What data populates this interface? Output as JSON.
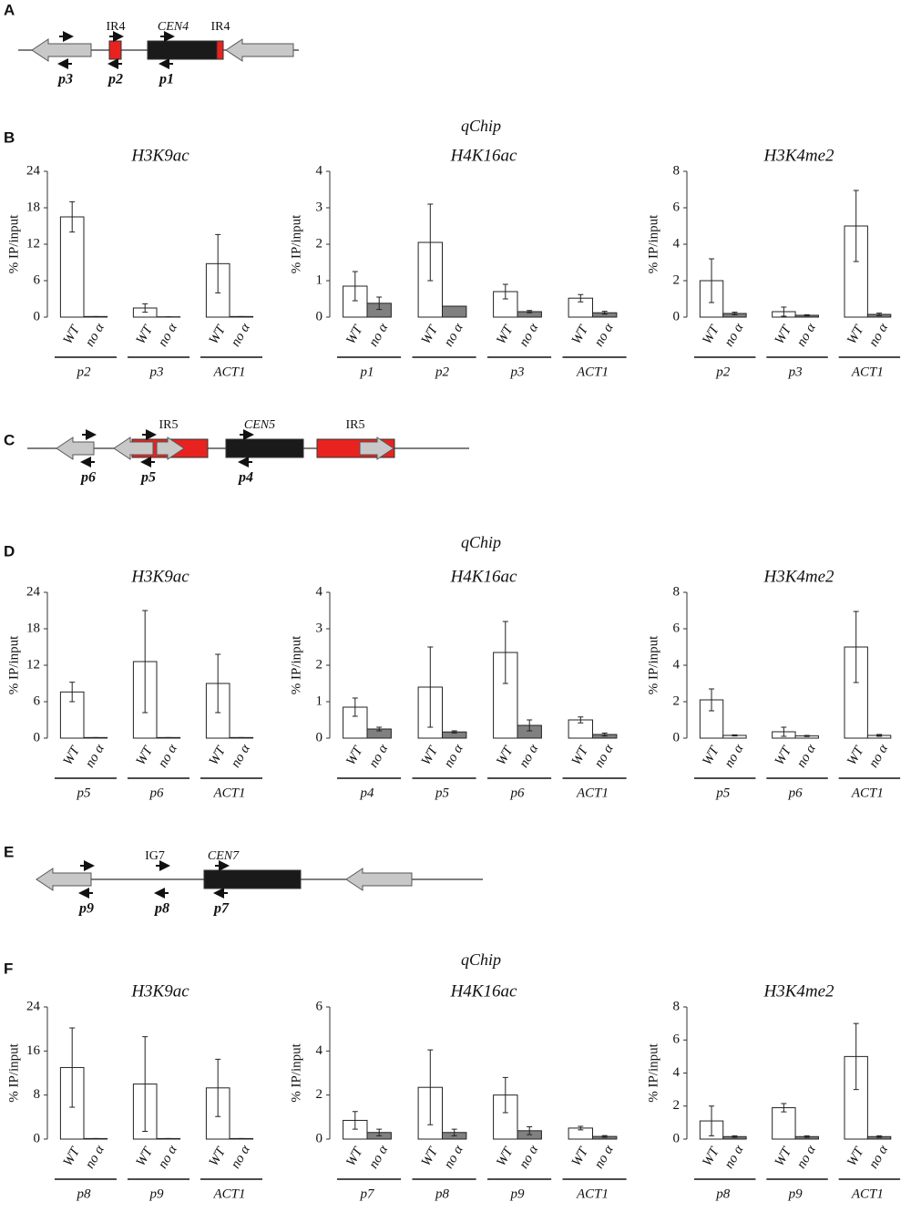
{
  "panel_labels": [
    "A",
    "B",
    "C",
    "D",
    "E",
    "F"
  ],
  "section_titles": [
    "qChip",
    "qChip",
    "qChip"
  ],
  "diagrams": [
    {
      "regions": [
        "IR4",
        "CEN4",
        "IR4"
      ],
      "primers": [
        "p3",
        "p2",
        "p1"
      ]
    },
    {
      "regions": [
        "IR5",
        "CEN5",
        "IR5"
      ],
      "primers": [
        "p6",
        "p5",
        "p4"
      ]
    },
    {
      "regions": [
        "IG7",
        "CEN7"
      ],
      "primers": [
        "p9",
        "p8",
        "p7"
      ]
    }
  ],
  "chart_data": [
    {
      "type": "bar",
      "title": "H3K9ac",
      "y_label": "% IP/input",
      "categories": [
        "p2",
        "p3",
        "ACT1"
      ],
      "ylim": [
        0,
        24
      ],
      "yticks": [
        0,
        6,
        12,
        18,
        24
      ],
      "series": [
        {
          "name": "WT",
          "color": "#ffffff",
          "values": [
            16.5,
            1.5,
            8.8
          ],
          "errors": [
            2.5,
            0.7,
            4.8
          ]
        },
        {
          "name": "no α",
          "color": "#ffffff",
          "values": [
            0.1,
            0.05,
            0.1
          ],
          "errors": [
            0,
            0,
            0
          ]
        }
      ]
    },
    {
      "type": "bar",
      "title": "H4K16ac",
      "y_label": "% IP/input",
      "categories": [
        "p1",
        "p2",
        "p3",
        "ACT1"
      ],
      "ylim": [
        0,
        4
      ],
      "yticks": [
        0,
        1,
        2,
        3,
        4
      ],
      "series": [
        {
          "name": "WT",
          "color": "#ffffff",
          "values": [
            0.85,
            2.05,
            0.7,
            0.52
          ],
          "errors": [
            0.4,
            1.05,
            0.2,
            0.1
          ]
        },
        {
          "name": "no α",
          "color": "#808080",
          "values": [
            0.38,
            0.3,
            0.15,
            0.12
          ],
          "errors": [
            0.17,
            0,
            0.03,
            0.04
          ]
        }
      ]
    },
    {
      "type": "bar",
      "title": "H3K4me2",
      "y_label": "% IP/input",
      "categories": [
        "p2",
        "p3",
        "ACT1"
      ],
      "ylim": [
        0,
        8
      ],
      "yticks": [
        0,
        2,
        4,
        6,
        8
      ],
      "series": [
        {
          "name": "WT",
          "color": "#ffffff",
          "values": [
            2.0,
            0.3,
            5.0
          ],
          "errors": [
            1.2,
            0.25,
            1.95
          ]
        },
        {
          "name": "no α",
          "color": "#808080",
          "values": [
            0.2,
            0.1,
            0.15
          ],
          "errors": [
            0.07,
            0.03,
            0.07
          ]
        }
      ]
    },
    {
      "type": "bar",
      "title": "H3K9ac",
      "y_label": "% IP/input",
      "categories": [
        "p5",
        "p6",
        "ACT1"
      ],
      "ylim": [
        0,
        24
      ],
      "yticks": [
        0,
        6,
        12,
        18,
        24
      ],
      "series": [
        {
          "name": "WT",
          "color": "#ffffff",
          "values": [
            7.6,
            12.6,
            9.0
          ],
          "errors": [
            1.6,
            8.4,
            4.8
          ]
        },
        {
          "name": "no α",
          "color": "#ffffff",
          "values": [
            0.1,
            0.1,
            0.1
          ],
          "errors": [
            0,
            0,
            0
          ]
        }
      ]
    },
    {
      "type": "bar",
      "title": "H4K16ac",
      "y_label": "% IP/input",
      "categories": [
        "p4",
        "p5",
        "p6",
        "ACT1"
      ],
      "ylim": [
        0,
        4
      ],
      "yticks": [
        0,
        1,
        2,
        3,
        4
      ],
      "series": [
        {
          "name": "WT",
          "color": "#ffffff",
          "values": [
            0.85,
            1.4,
            2.35,
            0.5
          ],
          "errors": [
            0.25,
            1.1,
            0.85,
            0.08
          ]
        },
        {
          "name": "no α",
          "color": "#808080",
          "values": [
            0.25,
            0.17,
            0.35,
            0.1
          ],
          "errors": [
            0.05,
            0.03,
            0.15,
            0.04
          ]
        }
      ]
    },
    {
      "type": "bar",
      "title": "H3K4me2",
      "y_label": "% IP/input",
      "categories": [
        "p5",
        "p6",
        "ACT1"
      ],
      "ylim": [
        0,
        8
      ],
      "yticks": [
        0,
        2,
        4,
        6,
        8
      ],
      "series": [
        {
          "name": "WT",
          "color": "#ffffff",
          "values": [
            2.1,
            0.35,
            5.0
          ],
          "errors": [
            0.6,
            0.25,
            1.95
          ]
        },
        {
          "name": "no α",
          "color": "#ffffff",
          "values": [
            0.15,
            0.12,
            0.15
          ],
          "errors": [
            0.03,
            0.03,
            0.05
          ]
        }
      ]
    },
    {
      "type": "bar",
      "title": "H3K9ac",
      "y_label": "% IP/input",
      "categories": [
        "p8",
        "p9",
        "ACT1"
      ],
      "ylim": [
        0,
        24
      ],
      "yticks": [
        0,
        8,
        16,
        24
      ],
      "series": [
        {
          "name": "WT",
          "color": "#ffffff",
          "values": [
            13.0,
            10.0,
            9.3
          ],
          "errors": [
            7.2,
            8.6,
            5.2
          ]
        },
        {
          "name": "no α",
          "color": "#ffffff",
          "values": [
            0.1,
            0.1,
            0.1
          ],
          "errors": [
            0,
            0,
            0
          ]
        }
      ]
    },
    {
      "type": "bar",
      "title": "H4K16ac",
      "y_label": "% IP/input",
      "categories": [
        "p7",
        "p8",
        "p9",
        "ACT1"
      ],
      "ylim": [
        0,
        6
      ],
      "yticks": [
        0,
        2,
        4,
        6
      ],
      "series": [
        {
          "name": "WT",
          "color": "#ffffff",
          "values": [
            0.85,
            2.35,
            2.0,
            0.5
          ],
          "errors": [
            0.4,
            1.7,
            0.8,
            0.08
          ]
        },
        {
          "name": "no α",
          "color": "#808080",
          "values": [
            0.3,
            0.3,
            0.38,
            0.12
          ],
          "errors": [
            0.15,
            0.15,
            0.18,
            0.04
          ]
        }
      ]
    },
    {
      "type": "bar",
      "title": "H3K4me2",
      "y_label": "% IP/input",
      "categories": [
        "p8",
        "p9",
        "ACT1"
      ],
      "ylim": [
        0,
        8
      ],
      "yticks": [
        0,
        2,
        4,
        6,
        8
      ],
      "series": [
        {
          "name": "WT",
          "color": "#ffffff",
          "values": [
            1.1,
            1.9,
            5.0
          ],
          "errors": [
            0.9,
            0.25,
            2.0
          ]
        },
        {
          "name": "no α",
          "color": "#808080",
          "values": [
            0.15,
            0.15,
            0.15
          ],
          "errors": [
            0.05,
            0.05,
            0.05
          ]
        }
      ]
    }
  ]
}
